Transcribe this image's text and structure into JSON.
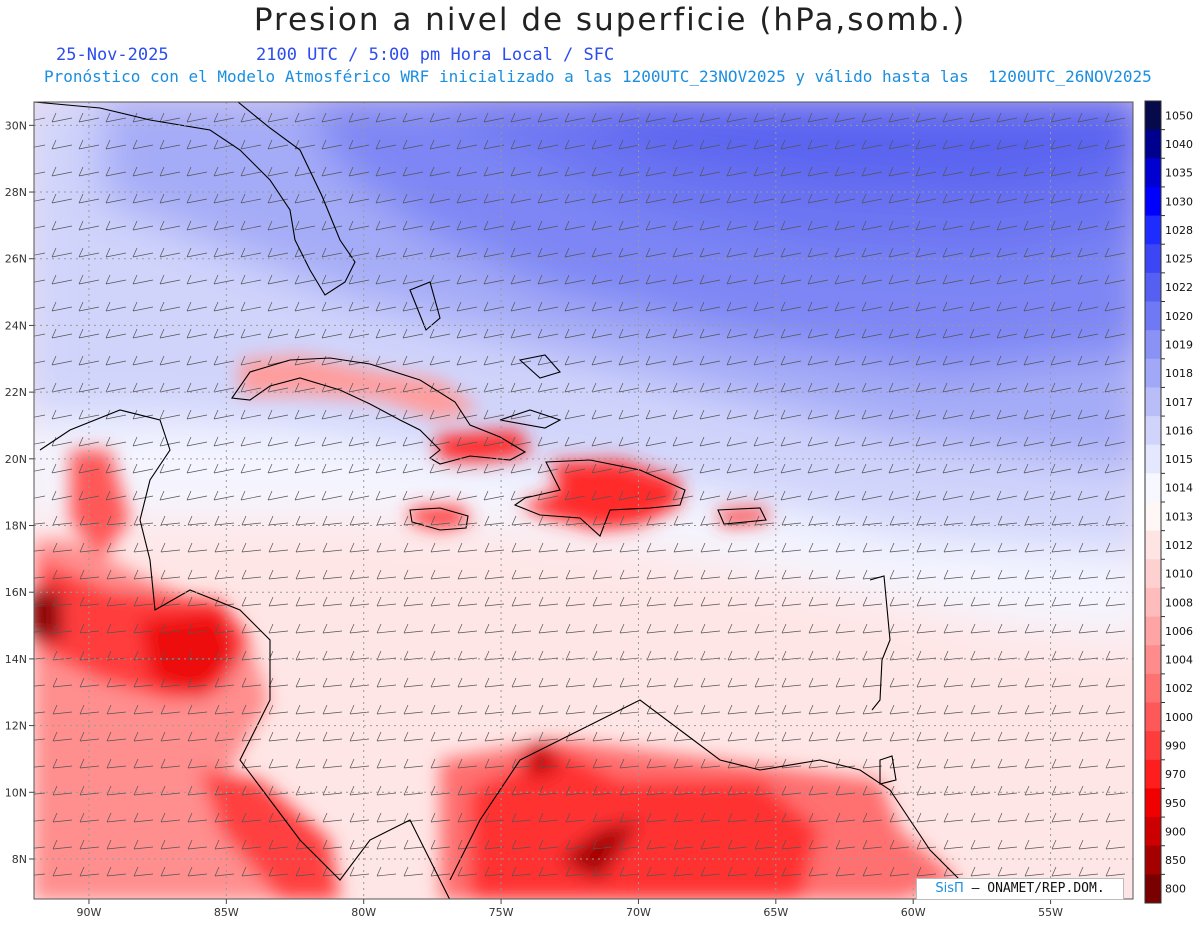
{
  "header": {
    "title": "Presion a nivel de superficie (hPa,somb.)",
    "date": "25-Nov-2025",
    "time": "2100 UTC / 5:00 pm Hora Local / SFC",
    "info": "Pronóstico con el Modelo Atmosférico WRF inicializado a las 1200UTC_23NOV2025 y válido hasta las  1200UTC_26NOV2025"
  },
  "map": {
    "lon_range": [
      -92,
      -52
    ],
    "lat_range": [
      6.8,
      30.7
    ],
    "lon_ticks": [
      {
        "value": -90,
        "label": "90W"
      },
      {
        "value": -85,
        "label": "85W"
      },
      {
        "value": -80,
        "label": "80W"
      },
      {
        "value": -75,
        "label": "75W"
      },
      {
        "value": -70,
        "label": "70W"
      },
      {
        "value": -65,
        "label": "65W"
      },
      {
        "value": -60,
        "label": "60W"
      },
      {
        "value": -55,
        "label": "55W"
      }
    ],
    "lat_ticks": [
      {
        "value": 30,
        "label": "30N"
      },
      {
        "value": 28,
        "label": "28N"
      },
      {
        "value": 26,
        "label": "26N"
      },
      {
        "value": 24,
        "label": "24N"
      },
      {
        "value": 22,
        "label": "22N"
      },
      {
        "value": 20,
        "label": "20N"
      },
      {
        "value": 18,
        "label": "18N"
      },
      {
        "value": 16,
        "label": "16N"
      },
      {
        "value": 14,
        "label": "14N"
      },
      {
        "value": 12,
        "label": "12N"
      },
      {
        "value": 10,
        "label": "10N"
      },
      {
        "value": 8,
        "label": "8N"
      }
    ],
    "grid": true
  },
  "colorbar": {
    "levels": [
      {
        "label": "1050",
        "color": "#060a4a"
      },
      {
        "label": "1040",
        "color": "#00008e"
      },
      {
        "label": "1035",
        "color": "#0000d0"
      },
      {
        "label": "1030",
        "color": "#0000ff"
      },
      {
        "label": "1028",
        "color": "#1e2cff"
      },
      {
        "label": "1025",
        "color": "#3c46f4"
      },
      {
        "label": "1022",
        "color": "#5560f2"
      },
      {
        "label": "1020",
        "color": "#6e79f3"
      },
      {
        "label": "1019",
        "color": "#8a92f5"
      },
      {
        "label": "1018",
        "color": "#a1a8f7"
      },
      {
        "label": "1017",
        "color": "#b9bef9"
      },
      {
        "label": "1016",
        "color": "#d0d4fb"
      },
      {
        "label": "1015",
        "color": "#e4e7fd"
      },
      {
        "label": "1014",
        "color": "#f6f7ff"
      },
      {
        "label": "1013",
        "color": "#fff6f6"
      },
      {
        "label": "1012",
        "color": "#ffe4e4"
      },
      {
        "label": "1010",
        "color": "#ffd0d0"
      },
      {
        "label": "1008",
        "color": "#ffbcbc"
      },
      {
        "label": "1006",
        "color": "#ffa4a4"
      },
      {
        "label": "1004",
        "color": "#ff8c8c"
      },
      {
        "label": "1002",
        "color": "#ff7272"
      },
      {
        "label": "1000",
        "color": "#ff5858"
      },
      {
        "label": "990",
        "color": "#ff3c3c"
      },
      {
        "label": "970",
        "color": "#ff1e1e"
      },
      {
        "label": "950",
        "color": "#f00000"
      },
      {
        "label": "900",
        "color": "#cc0000"
      },
      {
        "label": "850",
        "color": "#a40000"
      },
      {
        "label": "800",
        "color": "#7a0000"
      }
    ]
  },
  "credit": {
    "brand": "SisΠ",
    "text": "– ONAMET/REP.DOM."
  }
}
